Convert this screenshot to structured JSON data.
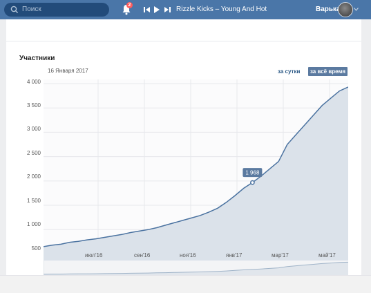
{
  "topbar": {
    "search_placeholder": "Поиск",
    "notification_count": "2",
    "track_title": "Rizzle Kicks – Young And Hot",
    "user_name": "Варька"
  },
  "card": {
    "title": "Участники",
    "date": "16 Января 2017",
    "period_day": "за сутки",
    "period_all": "за всё время",
    "tooltip": "1 968"
  },
  "chart_data": {
    "type": "area",
    "title": "Участники",
    "ylim": [
      450,
      4000
    ],
    "yticks": [
      "4 000",
      "3 500",
      "3 000",
      "2 500",
      "2 000",
      "1 500",
      "1 000",
      "500"
    ],
    "xticks": [
      "июл'16",
      "сен'16",
      "ноя'16",
      "янв'17",
      "мар'17",
      "май'17"
    ],
    "grid": true,
    "highlight": {
      "label": "16 Января 2017",
      "value": 1968
    },
    "series": [
      {
        "values": [
          650,
          680,
          700,
          740,
          760,
          790,
          810,
          840,
          870,
          900,
          940,
          970,
          1000,
          1040,
          1090,
          1140,
          1190,
          1240,
          1290,
          1360,
          1440,
          1560,
          1700,
          1850,
          1968,
          2100,
          2250,
          2400,
          2750,
          2950,
          3150,
          3350,
          3550,
          3700,
          3850,
          3930
        ]
      }
    ],
    "colors": {
      "line": "#4a72a0",
      "fill": "#dbe2ea"
    }
  }
}
